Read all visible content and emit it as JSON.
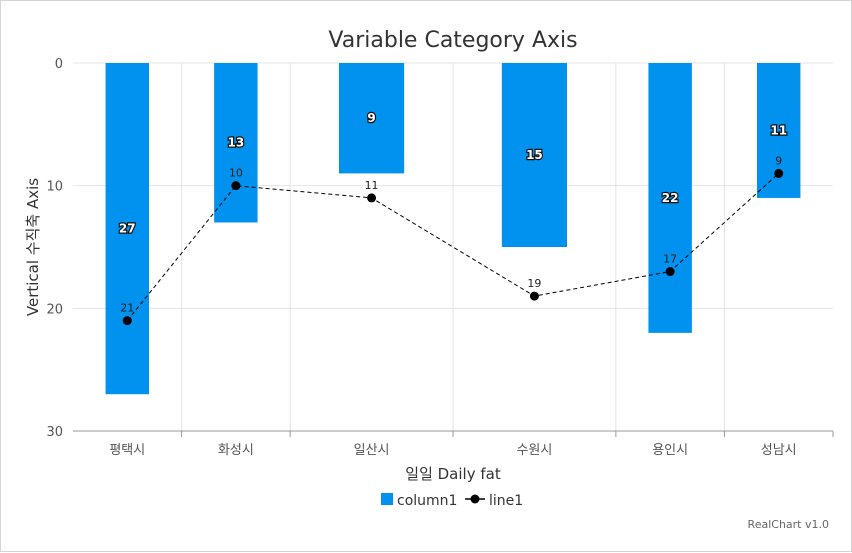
{
  "chart_data": {
    "type": "bar",
    "title": "Variable Category Axis",
    "xlabel": "일일 Daily fat",
    "ylabel": "Vertical 수직축 Axis",
    "categories": [
      "평택시",
      "화성시",
      "일산시",
      "수원시",
      "용인시",
      "성남시"
    ],
    "category_widths": [
      1,
      1,
      1.5,
      1.5,
      1,
      1
    ],
    "ylim": [
      0,
      30
    ],
    "y_reversed": true,
    "yticks": [
      0,
      10,
      20,
      30
    ],
    "grid": true,
    "legend_position": "bottom",
    "series": [
      {
        "name": "column1",
        "type": "bar",
        "color": "#0191ee",
        "values": [
          27,
          13,
          9,
          15,
          22,
          11
        ]
      },
      {
        "name": "line1",
        "type": "line",
        "style": "dashed",
        "marker": "circle",
        "color": "#000000",
        "values": [
          21,
          10,
          11,
          19,
          17,
          9
        ]
      }
    ]
  },
  "credit": "RealChart v1.0"
}
